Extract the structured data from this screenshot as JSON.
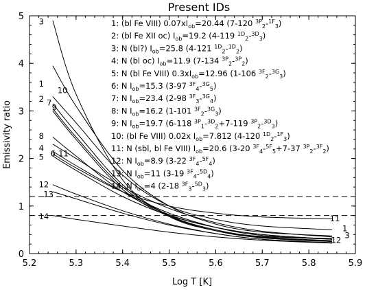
{
  "chart_data": {
    "type": "line",
    "title": "Present IDs",
    "xlabel": "Log T [K]",
    "ylabel": "Emissivity ratio",
    "xlim": [
      5.2,
      5.9
    ],
    "ylim": [
      0,
      5
    ],
    "xticks": [
      5.2,
      5.3,
      5.4,
      5.5,
      5.6,
      5.7,
      5.8,
      5.9
    ],
    "yticks": [
      0,
      1,
      2,
      3,
      4,
      5
    ],
    "grid": false,
    "reference_lines": [
      0.8,
      1.2
    ],
    "legend_entries": [
      {
        "id": "1",
        "text": "1: (bl Fe VIII) 0.07xI_ob=20.44 (7-120 ^3P_2-^1F_3)"
      },
      {
        "id": "2",
        "text": "2: (bl Fe XII oc) I_ob=19.2 (4-119 ^1D_2-^3D_3)"
      },
      {
        "id": "3",
        "text": "3: N (bl?) I_ob=25.8 (4-121 ^1D_2-^1D_2)"
      },
      {
        "id": "4",
        "text": "4: N (bl oc) I_ob=11.9 (7-134 ^3P_2-^3P_2)"
      },
      {
        "id": "5",
        "text": "5: N (bl Fe VIII) 0.3xI_ob=12.96 (1-106 ^3F_2-^3G_3)"
      },
      {
        "id": "6",
        "text": "6: N I_ob=15.3 (3-97 ^3F_4-^3G_5)"
      },
      {
        "id": "7",
        "text": "7: N I_ob=23.4 (2-98 ^3F_3-^3G_4)"
      },
      {
        "id": "8",
        "text": "8: N I_ob=16.2 (1-101 ^3F_2-^3G_3)"
      },
      {
        "id": "9",
        "text": "9: N I_ob=19.7 (6-118 ^3P_1-^3D_2+7-119 ^3P_2-^3D_3)"
      },
      {
        "id": "10",
        "text": "10: (bl Fe VIII) 0.02x I_ob=7.812 (4-120 ^1D_2-^1F_3)"
      },
      {
        "id": "11",
        "text": "11: N (sbl, bl Fe VIII) I_ob=20.6 (3-20 ^3F_4-^5F_5+7-37 ^3P_2-^3F_2)"
      },
      {
        "id": "12",
        "text": "12: N I_ob=8.9 (3-22 ^3F_4-^5F_4)"
      },
      {
        "id": "13",
        "text": "13: N I_ob=11 (3-19 ^3F_4-^5D_4)"
      },
      {
        "id": "14",
        "text": "14: N I_ob=4 (2-18 ^3F_3-^5D_3)"
      }
    ],
    "series": [
      {
        "id": "1",
        "x": [
          5.25,
          5.3,
          5.4,
          5.5,
          5.6,
          5.7,
          5.85
        ],
        "y": [
          3.3,
          2.75,
          1.65,
          1.0,
          0.72,
          0.58,
          0.5
        ]
      },
      {
        "id": "2",
        "x": [
          5.25,
          5.3,
          5.4,
          5.5,
          5.6,
          5.7,
          5.85
        ],
        "y": [
          3.15,
          2.55,
          1.45,
          0.8,
          0.48,
          0.33,
          0.25
        ]
      },
      {
        "id": "3",
        "x": [
          5.25,
          5.3,
          5.4,
          5.5,
          5.6,
          5.7,
          5.85
        ],
        "y": [
          4.9,
          3.35,
          1.55,
          0.78,
          0.48,
          0.36,
          0.32
        ]
      },
      {
        "id": "4",
        "x": [
          5.25,
          5.3,
          5.4,
          5.5,
          5.6,
          5.7,
          5.85
        ],
        "y": [
          2.3,
          2.0,
          1.4,
          0.95,
          0.65,
          0.47,
          0.35
        ]
      },
      {
        "id": "5",
        "x": [
          5.25,
          5.3,
          5.4,
          5.5,
          5.6,
          5.7,
          5.85
        ],
        "y": [
          2.15,
          1.85,
          1.3,
          0.85,
          0.55,
          0.38,
          0.3
        ]
      },
      {
        "id": "6",
        "x": [
          5.25,
          5.3,
          5.4,
          5.5,
          5.6,
          5.7,
          5.85
        ],
        "y": [
          2.05,
          1.75,
          1.2,
          0.8,
          0.55,
          0.4,
          0.3
        ]
      },
      {
        "id": "7",
        "x": [
          5.25,
          5.3,
          5.4,
          5.5,
          5.6,
          5.7,
          5.85
        ],
        "y": [
          3.05,
          2.45,
          1.4,
          0.8,
          0.5,
          0.35,
          0.27
        ]
      },
      {
        "id": "8",
        "x": [
          5.25,
          5.3,
          5.4,
          5.5,
          5.6,
          5.7,
          5.85
        ],
        "y": [
          2.45,
          2.05,
          1.3,
          0.82,
          0.55,
          0.4,
          0.3
        ]
      },
      {
        "id": "9",
        "x": [
          5.25,
          5.3,
          5.4,
          5.5,
          5.6,
          5.7,
          5.85
        ],
        "y": [
          3.0,
          2.4,
          1.35,
          0.78,
          0.48,
          0.34,
          0.26
        ]
      },
      {
        "id": "10",
        "x": [
          5.25,
          5.3,
          5.4,
          5.5,
          5.6,
          5.7,
          5.85
        ],
        "y": [
          3.95,
          3.1,
          1.75,
          1.0,
          0.62,
          0.45,
          0.37
        ]
      },
      {
        "id": "11",
        "x": [
          5.25,
          5.3,
          5.4,
          5.5,
          5.6,
          5.7,
          5.85
        ],
        "y": [
          2.1,
          1.8,
          1.3,
          1.0,
          0.85,
          0.77,
          0.73
        ]
      },
      {
        "id": "12",
        "x": [
          5.25,
          5.3,
          5.4,
          5.5,
          5.6,
          5.7,
          5.85
        ],
        "y": [
          1.45,
          1.25,
          0.9,
          0.62,
          0.42,
          0.3,
          0.22
        ]
      },
      {
        "id": "13",
        "x": [
          5.25,
          5.3,
          5.4,
          5.5,
          5.6,
          5.7,
          5.85
        ],
        "y": [
          1.3,
          1.15,
          0.85,
          0.6,
          0.42,
          0.3,
          0.23
        ]
      },
      {
        "id": "14",
        "x": [
          5.25,
          5.3,
          5.4,
          5.5,
          5.6,
          5.7,
          5.85
        ],
        "y": [
          0.8,
          0.72,
          0.58,
          0.45,
          0.35,
          0.28,
          0.22
        ]
      }
    ],
    "curve_labels": [
      {
        "text": "3",
        "x": 5.22,
        "y": 4.88
      },
      {
        "text": "1",
        "x": 5.22,
        "y": 3.57
      },
      {
        "text": "10",
        "x": 5.26,
        "y": 3.43
      },
      {
        "text": "2",
        "x": 5.22,
        "y": 3.25
      },
      {
        "text": "7",
        "x": 5.237,
        "y": 3.17
      },
      {
        "text": "9",
        "x": 5.248,
        "y": 3.07
      },
      {
        "text": "8",
        "x": 5.22,
        "y": 2.47
      },
      {
        "text": "4",
        "x": 5.22,
        "y": 2.22
      },
      {
        "text": "6",
        "x": 5.245,
        "y": 2.1
      },
      {
        "text": "11",
        "x": 5.262,
        "y": 2.1
      },
      {
        "text": "5",
        "x": 5.22,
        "y": 2.03
      },
      {
        "text": "12",
        "x": 5.22,
        "y": 1.45
      },
      {
        "text": "13",
        "x": 5.23,
        "y": 1.25
      },
      {
        "text": "14",
        "x": 5.22,
        "y": 0.78
      },
      {
        "text": "11",
        "x": 5.845,
        "y": 0.74
      },
      {
        "text": "1",
        "x": 5.872,
        "y": 0.53
      },
      {
        "text": "3",
        "x": 5.877,
        "y": 0.38
      },
      {
        "text": "12",
        "x": 5.848,
        "y": 0.28
      }
    ]
  }
}
